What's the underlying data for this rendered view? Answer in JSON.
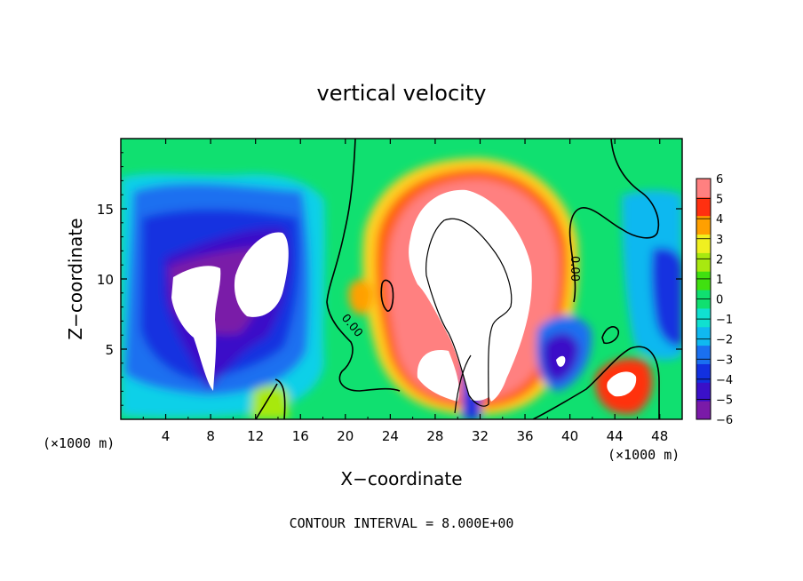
{
  "chart_data": {
    "type": "heatmap",
    "title": "vertical velocity",
    "xlabel": "X−coordinate",
    "ylabel": "Z−coordinate",
    "x_unit_label": "(×1000 m)",
    "x_unit_label_right": "(×1000 m)",
    "x_ticks": [
      "4",
      "8",
      "12",
      "16",
      "20",
      "24",
      "28",
      "32",
      "36",
      "40",
      "44",
      "48"
    ],
    "y_ticks": [
      "5",
      "10",
      "15"
    ],
    "xlim": [
      0,
      50
    ],
    "ylim": [
      0,
      20
    ],
    "colorbar_ticks": [
      "6",
      "5",
      "4",
      "3",
      "2",
      "1",
      "0",
      "−1",
      "−2",
      "−3",
      "−4",
      "−5",
      "−6"
    ],
    "colorbar_range": [
      -6,
      6
    ],
    "colormap": [
      "#7a1aa8",
      "#3a10c8",
      "#1230e0",
      "#1a70f0",
      "#10b8f0",
      "#10e0d0",
      "#10e070",
      "#40e010",
      "#a8e810",
      "#f0f020",
      "#ffa000",
      "#ff3010",
      "#ff8080"
    ],
    "contour_label": "0.00",
    "footer": "CONTOUR INTERVAL = 8.000E+00"
  }
}
